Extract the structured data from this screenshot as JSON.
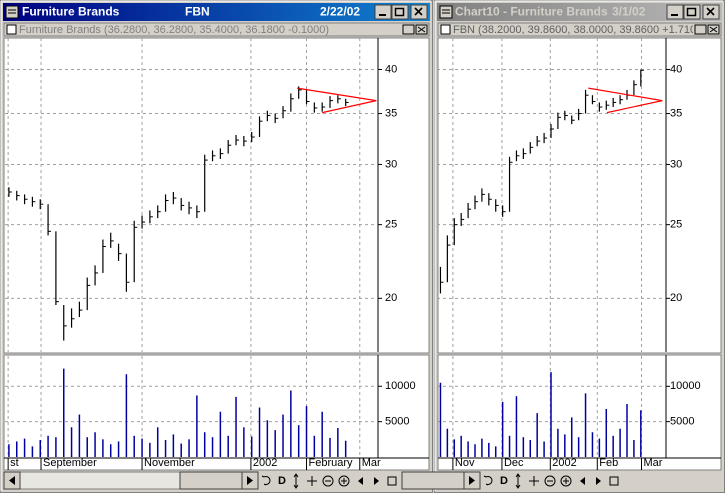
{
  "windows": [
    {
      "title": "Furniture Brands",
      "symbol": "FBN",
      "date": "2/22/02",
      "legend": "Furniture Brands (36.2800, 36.2800, 35.4000, 36.1800 -0.1000)",
      "toolbar_label": "D",
      "price": {
        "type": "ohlc",
        "color": "#000000",
        "log": true,
        "grid": true,
        "ylim": [
          17,
          44
        ],
        "yticks": [
          20,
          25,
          30,
          35,
          40
        ],
        "xlim": [
          -0.5,
          47
        ],
        "xticks": [
          {
            "value": -0.1,
            "label": "st"
          },
          {
            "value": 4.1,
            "label": "September"
          },
          {
            "value": 17,
            "label": "November"
          },
          {
            "value": 30.9,
            "label": "2002"
          },
          {
            "value": 38,
            "label": "February"
          },
          {
            "value": 44.8,
            "label": "Mar"
          }
        ],
        "high": [
          28.0,
          27.7,
          27.4,
          27.2,
          27.0,
          26.6,
          24.5,
          19.6,
          19.4,
          19.8,
          21.3,
          22.1,
          23.9,
          24.4,
          23.6,
          22.9,
          25.3,
          25.7,
          26.1,
          26.5,
          27.4,
          27.6,
          27.1,
          26.8,
          26.5,
          30.9,
          31.3,
          31.5,
          32.3,
          32.8,
          32.7,
          33.1,
          34.7,
          35.3,
          35.0,
          35.8,
          37.2,
          38.0,
          37.7,
          36.2,
          36.2,
          36.9,
          37.0,
          36.6
        ],
        "low": [
          27.2,
          26.9,
          26.6,
          26.4,
          26.2,
          24.2,
          19.6,
          17.6,
          18.3,
          18.9,
          19.3,
          20.8,
          21.6,
          23.3,
          22.4,
          20.4,
          21.0,
          24.7,
          25.1,
          25.5,
          26.0,
          26.6,
          26.1,
          25.8,
          25.5,
          26.0,
          30.3,
          30.5,
          31.0,
          31.8,
          31.7,
          32.1,
          32.6,
          34.2,
          34.0,
          34.5,
          35.2,
          36.6,
          36.0,
          35.1,
          35.2,
          35.6,
          36.1,
          35.8
        ],
        "close": [
          27.6,
          27.3,
          27.0,
          26.8,
          26.6,
          24.5,
          19.8,
          18.4,
          18.8,
          19.3,
          20.8,
          21.6,
          23.4,
          23.8,
          22.9,
          21.0,
          24.8,
          25.2,
          25.6,
          26.0,
          26.9,
          27.1,
          26.5,
          26.3,
          26.0,
          30.4,
          30.8,
          31.0,
          31.8,
          32.3,
          32.2,
          32.6,
          34.2,
          34.8,
          34.5,
          35.3,
          36.6,
          37.6,
          36.3,
          35.6,
          35.7,
          36.4,
          36.6,
          36.2
        ],
        "trendlines": [
          {
            "color": "#ff0000",
            "points": [
              [
                36.8,
                37.8
              ],
              [
                46.9,
                36.4
              ]
            ]
          },
          {
            "color": "#ff0000",
            "points": [
              [
                40.0,
                35.1
              ],
              [
                46.9,
                36.4
              ]
            ]
          }
        ]
      },
      "volume": {
        "type": "bar",
        "color": "#0000a0",
        "grid": true,
        "ylim": [
          0,
          14000
        ],
        "yticks": [
          5000,
          10000
        ],
        "values": [
          1800,
          2200,
          2600,
          1500,
          2400,
          3000,
          2800,
          12500,
          4200,
          6000,
          2800,
          3500,
          2500,
          1800,
          2200,
          11700,
          3000,
          2600,
          2000,
          4200,
          2400,
          3200,
          1900,
          2500,
          8700,
          3500,
          2800,
          6400,
          3000,
          8500,
          4200,
          2900,
          7000,
          5200,
          3800,
          6000,
          9400,
          4500,
          7200,
          3000,
          6400,
          2700,
          4100,
          2300
        ]
      }
    },
    {
      "title": "Chart10 - Furniture Brands",
      "date": "3/1/02",
      "legend": "FBN (38.2000, 39.8600, 38.0000, 39.8600 +1.7100)",
      "toolbar_label": "D",
      "price": {
        "type": "ohlc",
        "color": "#000000",
        "log": true,
        "grid": true,
        "ylim": [
          17,
          44
        ],
        "yticks": [
          20,
          25,
          30,
          35,
          40
        ],
        "xlim": [
          -0.5,
          32.5
        ],
        "xticks": [
          {
            "value": 1.8,
            "label": "Nov"
          },
          {
            "value": 8.9,
            "label": "Dec"
          },
          {
            "value": 15.9,
            "label": "2002"
          },
          {
            "value": 22.7,
            "label": "Feb"
          },
          {
            "value": 29.1,
            "label": "Mar"
          }
        ],
        "high": [
          22.0,
          24.2,
          25.5,
          25.9,
          26.7,
          27.3,
          27.9,
          27.5,
          27.0,
          26.5,
          30.7,
          31.3,
          31.5,
          32.1,
          32.7,
          33.0,
          33.9,
          35.1,
          35.3,
          34.8,
          35.5,
          37.6,
          37.0,
          36.2,
          36.4,
          36.7,
          37.0,
          37.6,
          38.7,
          40.0
        ],
        "low": [
          20.3,
          21.0,
          23.5,
          24.9,
          25.5,
          26.2,
          26.8,
          26.5,
          26.0,
          25.6,
          26.0,
          30.3,
          30.5,
          31.0,
          31.7,
          32.0,
          32.5,
          33.4,
          34.3,
          33.9,
          34.3,
          35.0,
          36.0,
          35.2,
          35.4,
          35.7,
          36.0,
          36.5,
          37.0,
          38.0
        ],
        "close": [
          21.0,
          23.5,
          25.0,
          25.4,
          26.2,
          26.8,
          27.4,
          27.0,
          26.5,
          26.0,
          30.2,
          30.8,
          31.0,
          31.6,
          32.2,
          32.5,
          33.4,
          34.6,
          34.8,
          34.3,
          35.0,
          37.0,
          36.3,
          35.7,
          35.9,
          36.2,
          36.5,
          37.0,
          38.2,
          39.9
        ],
        "trendlines": [
          {
            "color": "#ff0000",
            "points": [
              [
                21.4,
                37.8
              ],
              [
                32.1,
                36.4
              ]
            ]
          },
          {
            "color": "#ff0000",
            "points": [
              [
                24.1,
                35.1
              ],
              [
                32.1,
                36.4
              ]
            ]
          }
        ]
      },
      "volume": {
        "type": "bar",
        "color": "#0000a0",
        "grid": true,
        "ylim": [
          0,
          14000
        ],
        "yticks": [
          5000,
          10000
        ],
        "values": [
          10500,
          4000,
          2500,
          3000,
          2200,
          1800,
          2600,
          2000,
          1500,
          7800,
          3000,
          8600,
          2800,
          2400,
          6200,
          2200,
          12000,
          4000,
          3200,
          5600,
          2800,
          9000,
          3500,
          2600,
          6800,
          3000,
          4000,
          7500,
          2400,
          6600
        ]
      }
    }
  ]
}
